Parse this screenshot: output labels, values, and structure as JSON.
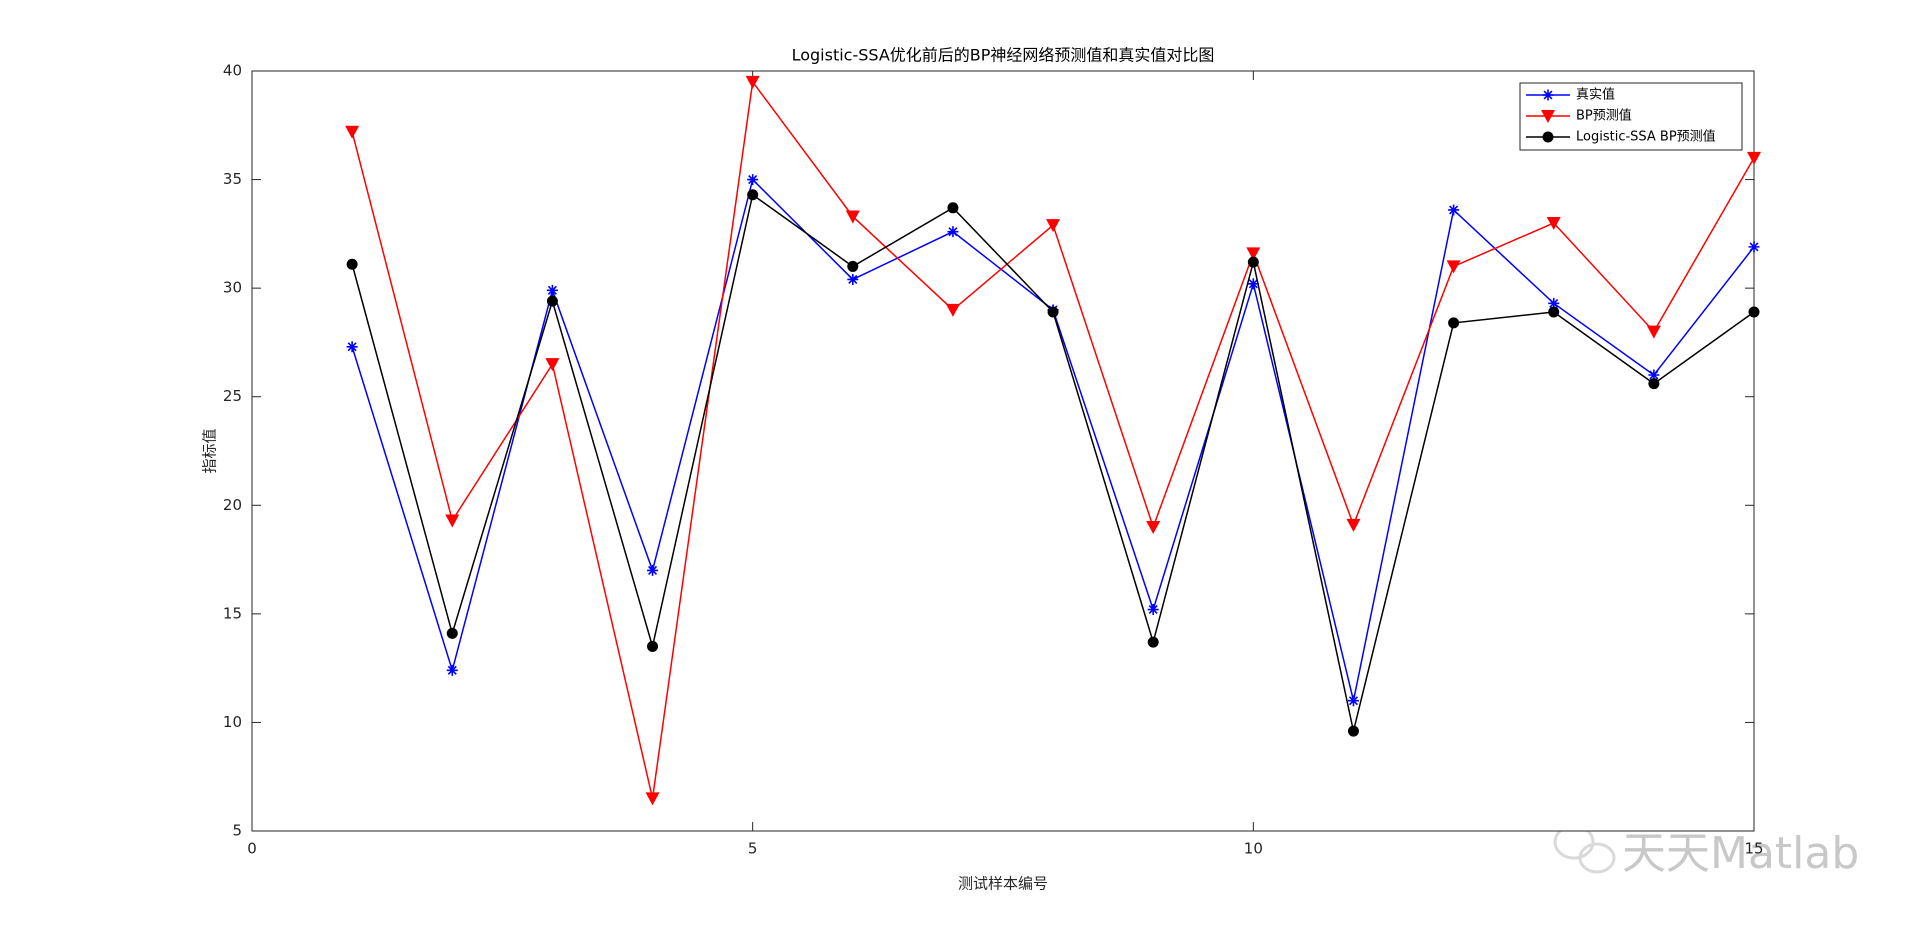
{
  "chart_data": {
    "type": "line",
    "title": "Logistic-SSA优化前后的BP神经网络预测值和真实值对比图",
    "xlabel": "测试样本编号",
    "ylabel": "指标值",
    "x": [
      1,
      2,
      3,
      4,
      5,
      6,
      7,
      8,
      9,
      10,
      11,
      12,
      13,
      14,
      15
    ],
    "series": [
      {
        "name": "真实值",
        "color": "#0000ff",
        "marker": "asterisk",
        "values": [
          27.3,
          12.4,
          29.9,
          17.0,
          35.0,
          30.4,
          32.6,
          29.0,
          15.2,
          30.2,
          11.0,
          33.6,
          29.3,
          26.0,
          31.9
        ]
      },
      {
        "name": "BP预测值",
        "color": "#ff0000",
        "marker": "triangle-down",
        "values": [
          37.2,
          19.3,
          26.5,
          6.5,
          39.5,
          33.3,
          29.0,
          32.9,
          19.0,
          31.6,
          19.1,
          31.0,
          33.0,
          28.0,
          36.0
        ]
      },
      {
        "name": "Logistic-SSA BP预测值",
        "color": "#000000",
        "marker": "circle",
        "values": [
          31.1,
          14.1,
          29.4,
          13.5,
          34.3,
          31.0,
          33.7,
          28.9,
          13.7,
          31.2,
          9.6,
          28.4,
          28.9,
          25.6,
          28.9
        ]
      }
    ],
    "xlim": [
      0,
      15
    ],
    "xticks": [
      0,
      5,
      10,
      15
    ],
    "ylim": [
      5,
      40
    ],
    "yticks": [
      5,
      10,
      15,
      20,
      25,
      30,
      35,
      40
    ],
    "grid": false,
    "legend": "upper right"
  },
  "watermark": "天天Matlab"
}
